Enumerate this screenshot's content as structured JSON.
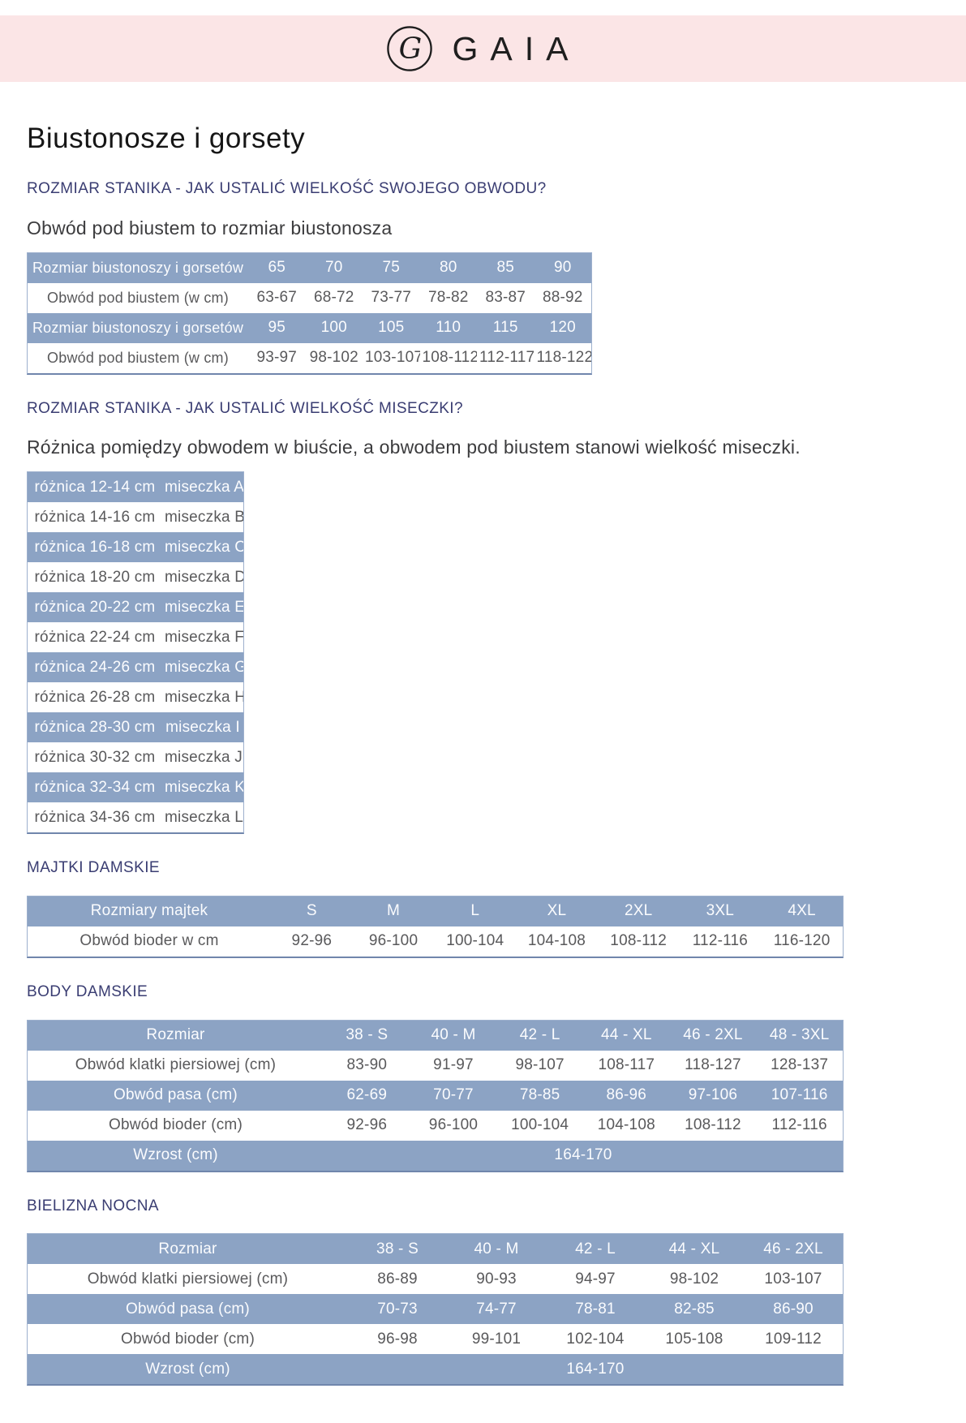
{
  "header": {
    "brand": "GAIA",
    "logo_letter": "G"
  },
  "page": {
    "title": "Biustonosze i gorsety"
  },
  "colors": {
    "band_pink": "#fbe5e6",
    "row_blue": "#8ca3c4",
    "heading_navy": "#3a3d72",
    "row_text_gray": "#59595b"
  },
  "sections": {
    "bra_band": {
      "heading": "ROZMIAR STANIKA - JAK USTALIĆ WIELKOŚĆ SWOJEGO OBWODU?",
      "subtitle": "Obwód pod biustem to rozmiar biustonosza",
      "table": {
        "rows": [
          {
            "style": "blue",
            "label": "Rozmiar biustonoszy i gorsetów",
            "values": [
              "65",
              "70",
              "75",
              "80",
              "85",
              "90"
            ]
          },
          {
            "style": "white",
            "label": "Obwód pod biustem (w cm)",
            "values": [
              "63-67",
              "68-72",
              "73-77",
              "78-82",
              "83-87",
              "88-92"
            ]
          },
          {
            "style": "blue",
            "label": "Rozmiar biustonoszy i gorsetów",
            "values": [
              "95",
              "100",
              "105",
              "110",
              "115",
              "120"
            ]
          },
          {
            "style": "white",
            "label": "Obwód pod biustem (w cm)",
            "values": [
              "93-97",
              "98-102",
              "103-107",
              "108-112",
              "112-117",
              "118-122"
            ]
          }
        ]
      }
    },
    "cup": {
      "heading": "ROZMIAR STANIKA - JAK USTALIĆ WIELKOŚĆ MISECZKI?",
      "subtitle": "Różnica pomiędzy obwodem w biuście, a obwodem pod biustem stanowi wielkość miseczki.",
      "table": {
        "rows": [
          {
            "style": "blue",
            "label": "różnica 12-14 cm",
            "values": [
              "miseczka A"
            ]
          },
          {
            "style": "white",
            "label": "różnica 14-16 cm",
            "values": [
              "miseczka B"
            ]
          },
          {
            "style": "blue",
            "label": "różnica 16-18 cm",
            "values": [
              "miseczka C"
            ]
          },
          {
            "style": "white",
            "label": "różnica 18-20 cm",
            "values": [
              "miseczka D"
            ]
          },
          {
            "style": "blue",
            "label": "różnica 20-22 cm",
            "values": [
              "miseczka E"
            ]
          },
          {
            "style": "white",
            "label": "różnica 22-24 cm",
            "values": [
              "miseczka F"
            ]
          },
          {
            "style": "blue",
            "label": "różnica 24-26 cm",
            "values": [
              "miseczka G"
            ]
          },
          {
            "style": "white",
            "label": "różnica 26-28 cm",
            "values": [
              "miseczka H"
            ]
          },
          {
            "style": "blue",
            "label": "różnica 28-30 cm",
            "values": [
              "miseczka I"
            ]
          },
          {
            "style": "white",
            "label": "różnica 30-32 cm",
            "values": [
              "miseczka J"
            ]
          },
          {
            "style": "blue",
            "label": "różnica 32-34 cm",
            "values": [
              "miseczka K"
            ]
          },
          {
            "style": "white",
            "label": "różnica 34-36 cm",
            "values": [
              "miseczka L"
            ]
          }
        ]
      }
    },
    "panties": {
      "heading": "MAJTKI DAMSKIE",
      "table": {
        "rows": [
          {
            "style": "blue",
            "label": "Rozmiary majtek",
            "values": [
              "S",
              "M",
              "L",
              "XL",
              "2XL",
              "3XL",
              "4XL"
            ]
          },
          {
            "style": "white",
            "label": "Obwód bioder w cm",
            "values": [
              "92-96",
              "96-100",
              "100-104",
              "104-108",
              "108-112",
              "112-116",
              "116-120"
            ]
          }
        ]
      }
    },
    "body": {
      "heading": "BODY DAMSKIE",
      "table": {
        "rows": [
          {
            "style": "blue",
            "label": "Rozmiar",
            "values": [
              "38 - S",
              "40 - M",
              "42 - L",
              "44 - XL",
              "46 - 2XL",
              "48 - 3XL"
            ]
          },
          {
            "style": "white",
            "label": "Obwód klatki piersiowej (cm)",
            "values": [
              "83-90",
              "91-97",
              "98-107",
              "108-117",
              "118-127",
              "128-137"
            ]
          },
          {
            "style": "blue",
            "label": "Obwód pasa (cm)",
            "values": [
              "62-69",
              "70-77",
              "78-85",
              "86-96",
              "97-106",
              "107-116"
            ]
          },
          {
            "style": "white",
            "label": "Obwód bioder (cm)",
            "values": [
              "92-96",
              "96-100",
              "100-104",
              "104-108",
              "108-112",
              "112-116"
            ]
          },
          {
            "style": "blue",
            "label": "Wzrost (cm)",
            "values": [
              "164-170"
            ],
            "span": 6
          }
        ]
      }
    },
    "nightwear": {
      "heading": "BIELIZNA NOCNA",
      "table": {
        "rows": [
          {
            "style": "blue",
            "label": "Rozmiar",
            "values": [
              "38 - S",
              "40 - M",
              "42 - L",
              "44 - XL",
              "46 - 2XL"
            ]
          },
          {
            "style": "white",
            "label": "Obwód klatki piersiowej (cm)",
            "values": [
              "86-89",
              "90-93",
              "94-97",
              "98-102",
              "103-107"
            ]
          },
          {
            "style": "blue",
            "label": "Obwód pasa (cm)",
            "values": [
              "70-73",
              "74-77",
              "78-81",
              "82-85",
              "86-90"
            ]
          },
          {
            "style": "white",
            "label": "Obwód bioder (cm)",
            "values": [
              "96-98",
              "99-101",
              "102-104",
              "105-108",
              "109-112"
            ]
          },
          {
            "style": "blue",
            "label": "Wzrost (cm)",
            "values": [
              "164-170"
            ],
            "span": 5
          }
        ]
      }
    }
  }
}
